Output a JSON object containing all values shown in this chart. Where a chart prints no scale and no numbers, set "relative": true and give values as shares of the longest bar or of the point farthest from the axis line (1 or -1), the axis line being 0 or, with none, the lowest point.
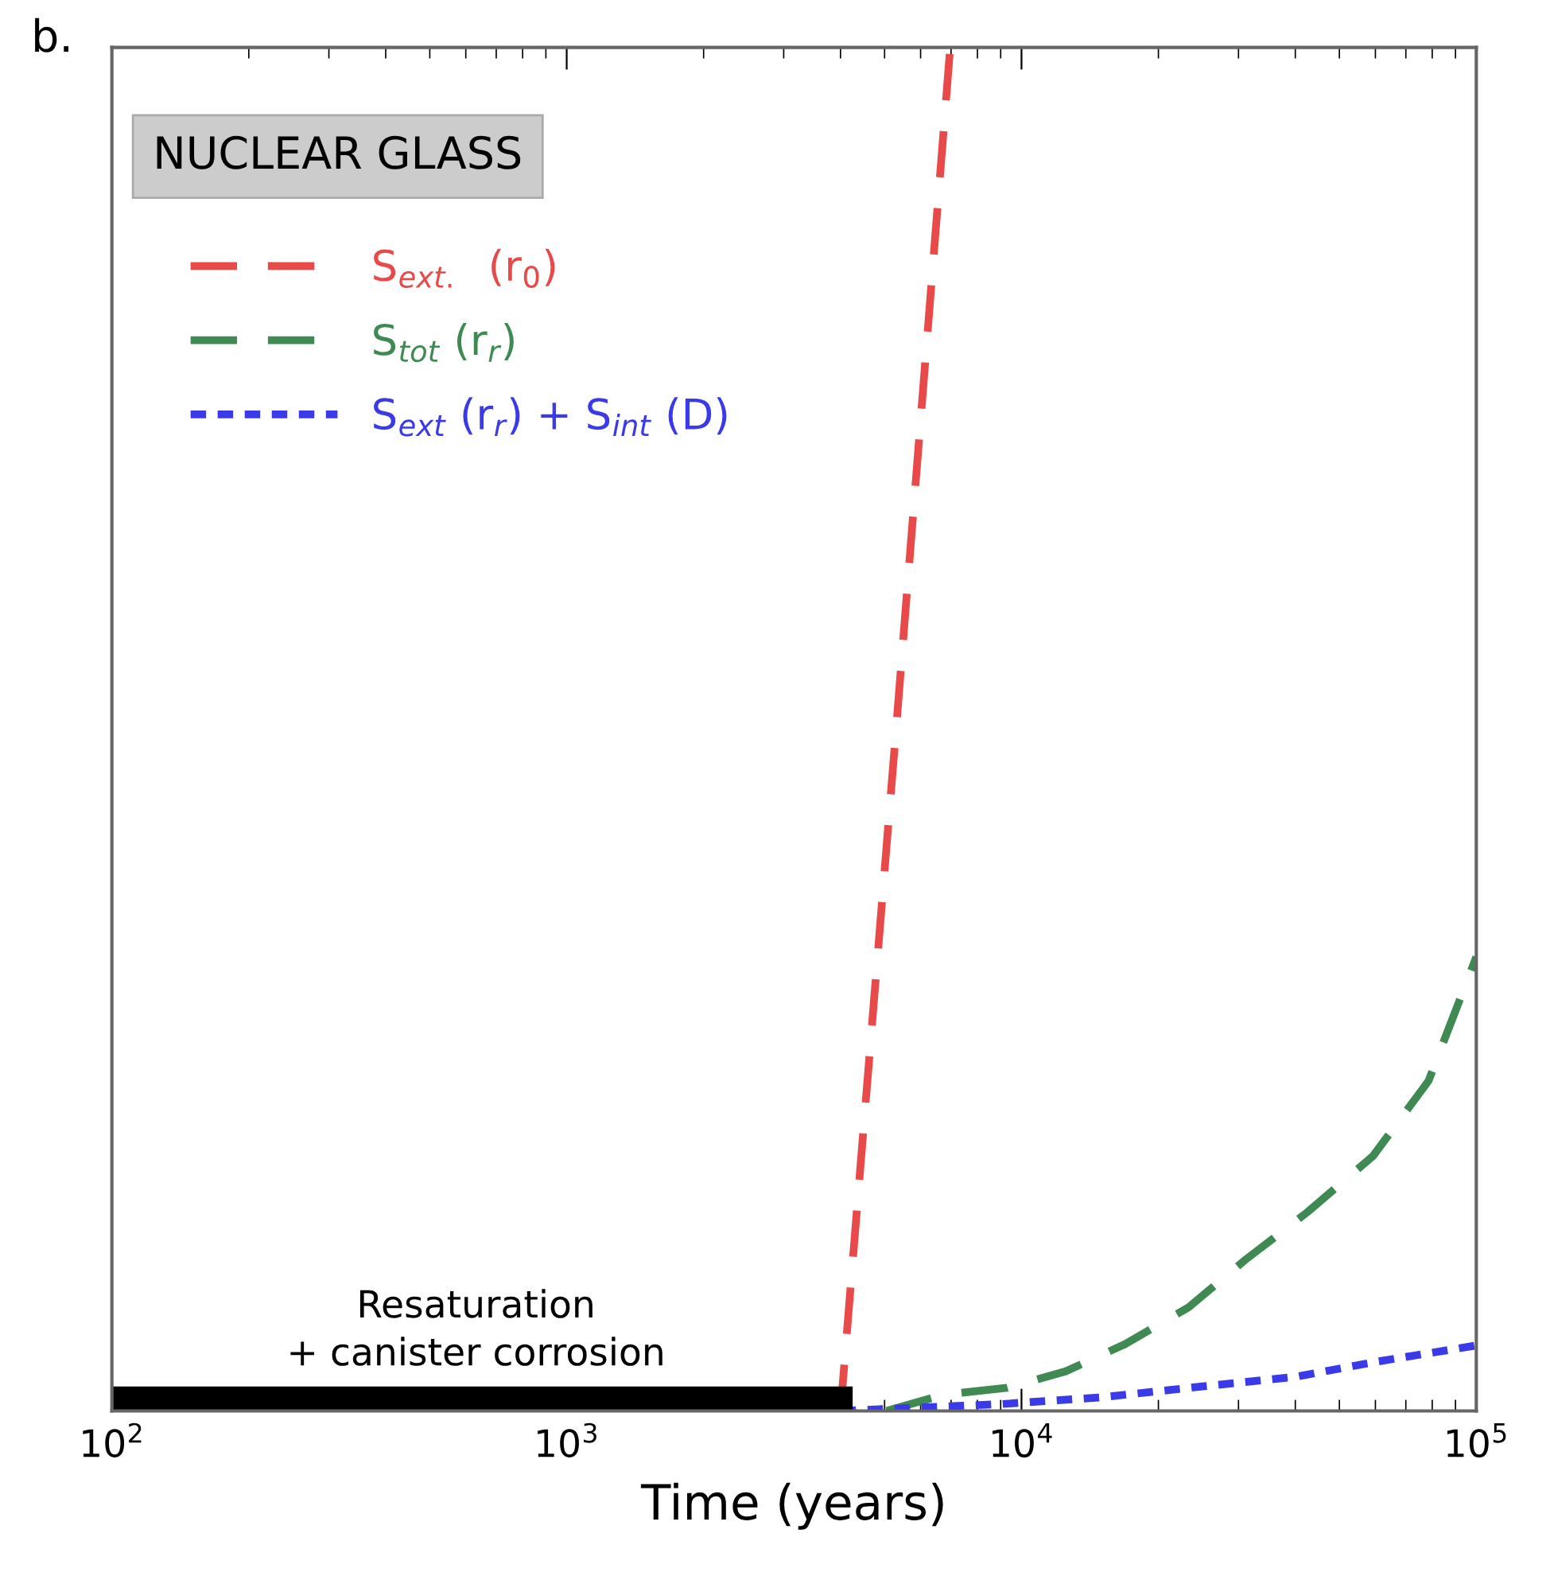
{
  "chart_data": {
    "type": "line",
    "xlabel": "Time (years)",
    "log": "x",
    "relative": true,
    "xlim": [
      100,
      100000
    ],
    "xticks": [
      {
        "value": 100,
        "label": "10$^{2}$"
      },
      {
        "value": 1000,
        "label": "10$^{3}$"
      },
      {
        "value": 10000,
        "label": "10$^{4}$"
      },
      {
        "value": 100000,
        "label": "10$^{5}$"
      }
    ],
    "grid": false,
    "legend": "top left",
    "marker": "none",
    "series": [
      {
        "name": "S$_{ext.}$  (r$_{0}$)",
        "color": "#e84a4a",
        "line_style": "dashed",
        "x": [
          4000,
          5300,
          6970
        ],
        "values": [
          0,
          0.5,
          1
        ]
      },
      {
        "name": "S$_{tot}$ (r$_{r}$)",
        "color": "#3f8a52",
        "line_style": "dashed",
        "x": [
          5050,
          6750,
          9300,
          12500,
          16900,
          23300,
          31100,
          42600,
          59300,
          78500,
          100000
        ],
        "values": [
          0,
          0.012,
          0.017,
          0.029,
          0.049,
          0.076,
          0.111,
          0.146,
          0.187,
          0.242,
          0.333
        ]
      },
      {
        "name": "S$_{ext}$ (r$_{r}$) + S$_{int}$ (D)",
        "color": "#3a3ae8",
        "line_style": "dotted",
        "x": [
          4000,
          9000,
          15000,
          25000,
          40000,
          60000,
          100000
        ],
        "values": [
          0,
          0.005,
          0.01,
          0.018,
          0.025,
          0.036,
          0.048
        ]
      },
      {
        "color": "#000000",
        "line_style": "solid",
        "x": [
          100,
          4000
        ],
        "values": [
          0.009,
          0.009
        ]
      }
    ],
    "annotations": [
      "NUCLEAR GLASS",
      "b.",
      {
        "text": "Resaturation\n+ canister corrosion",
        "x": 632,
        "y": 0.018
      }
    ]
  }
}
